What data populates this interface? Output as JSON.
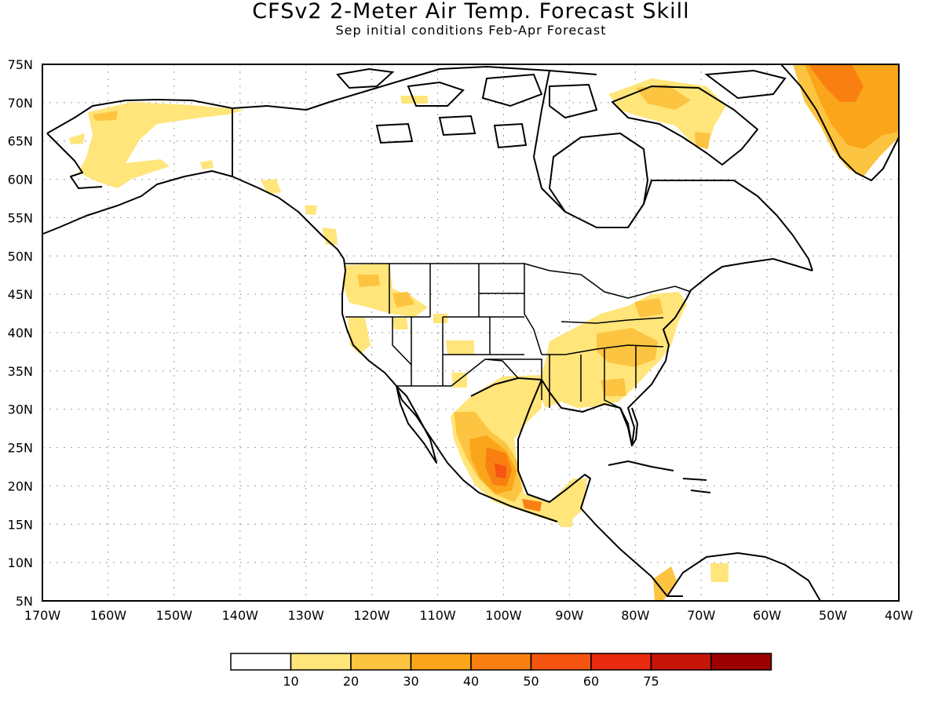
{
  "title": "CFSv2 2-Meter Air Temp. Forecast Skill",
  "subtitle": "Sep initial conditions   Feb-Apr Forecast",
  "lat_labels": [
    "75N",
    "70N",
    "65N",
    "60N",
    "55N",
    "50N",
    "45N",
    "40N",
    "35N",
    "30N",
    "25N",
    "20N",
    "15N",
    "10N",
    "5N"
  ],
  "lon_labels": [
    "170W",
    "160W",
    "150W",
    "140W",
    "130W",
    "120W",
    "110W",
    "100W",
    "90W",
    "80W",
    "70W",
    "60W",
    "50W",
    "40W"
  ],
  "legend": {
    "colors": [
      "#ffffff",
      "#ffe57a",
      "#fcc440",
      "#fba51a",
      "#f98010",
      "#f55510",
      "#e82a0e",
      "#c41508",
      "#9c0000"
    ],
    "labels": [
      "10",
      "20",
      "30",
      "40",
      "50",
      "60",
      "75"
    ]
  },
  "colors": {
    "level1": "#ffe57a",
    "level2": "#fcc440",
    "level3": "#fba51a",
    "level4": "#f98010",
    "level5": "#f55510",
    "level6": "#e82a0e"
  }
}
